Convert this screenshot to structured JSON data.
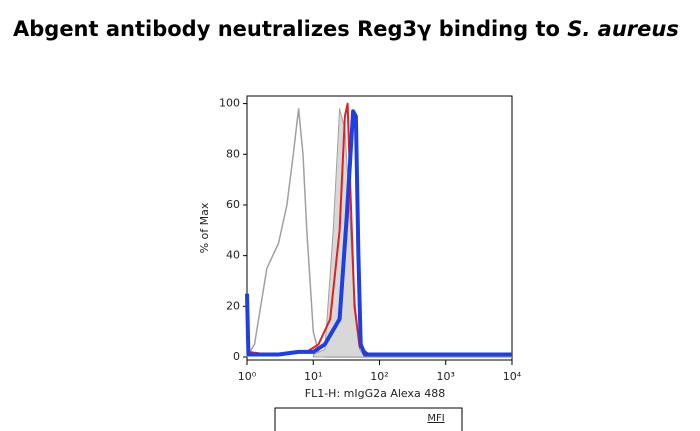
{
  "chart_data": {
    "type": "line",
    "title": "Abgent antibody neutralizes Reg3γ binding to",
    "title_italic": "S. aureus",
    "xlabel": "FL1-H: mIgG2a Alexa 488",
    "ylabel": "% of Max",
    "xscale": "log",
    "xlim": [
      1,
      10000
    ],
    "xticks": [
      {
        "value": 1,
        "label": "10⁰"
      },
      {
        "value": 10,
        "label": "10¹"
      },
      {
        "value": 100,
        "label": "10²"
      },
      {
        "value": 1000,
        "label": "10³"
      },
      {
        "value": 10000,
        "label": "10⁴"
      }
    ],
    "ylim": [
      0,
      103
    ],
    "yticks": [
      0,
      20,
      40,
      60,
      80,
      100
    ],
    "legend_title": "MFI",
    "series": [
      {
        "color": "#a0a0a0",
        "width": 1.5,
        "fill": false,
        "x": [
          1,
          1.3,
          2,
          3,
          4,
          5,
          6,
          7,
          8,
          10,
          12,
          15,
          10000
        ],
        "values": [
          0,
          5,
          35,
          45,
          60,
          80,
          98,
          80,
          50,
          10,
          2,
          0,
          0
        ]
      },
      {
        "color": "#a0a0a0",
        "width": 1,
        "fill": true,
        "x": [
          10,
          15,
          20,
          25,
          30,
          35,
          40,
          50,
          60
        ],
        "values": [
          1,
          3,
          50,
          98,
          90,
          60,
          30,
          3,
          0
        ]
      },
      {
        "color": "#e02020",
        "width": 2,
        "fill": false,
        "x": [
          1,
          1.05,
          2,
          8,
          12,
          18,
          25,
          30,
          33,
          37,
          42,
          50,
          70,
          10000
        ],
        "values": [
          25,
          2,
          1,
          2,
          5,
          15,
          50,
          95,
          100,
          60,
          20,
          4,
          1,
          1
        ]
      },
      {
        "color": "#1f3fe0",
        "width": 4,
        "fill": false,
        "x": [
          1,
          1.05,
          3,
          6,
          10,
          15,
          25,
          32,
          40,
          44,
          48,
          52,
          60,
          10000
        ],
        "values": [
          25,
          1,
          1,
          2,
          2,
          5,
          15,
          55,
          97,
          95,
          40,
          5,
          1,
          1
        ]
      }
    ]
  }
}
